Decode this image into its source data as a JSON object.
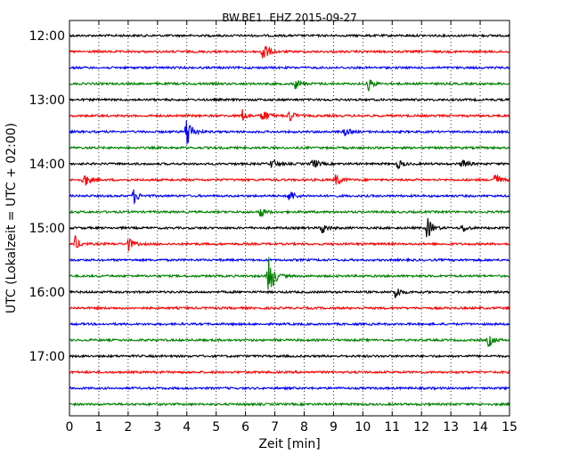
{
  "chart_data": {
    "type": "line",
    "title": "BW.BE1..EHZ 2015-09-27",
    "xlabel": "Zeit  [min]",
    "ylabel": "UTC (Lokalzeit = UTC + 02:00)",
    "xlim": [
      0,
      15
    ],
    "x_ticks": [
      "0",
      "1",
      "2",
      "3",
      "4",
      "5",
      "6",
      "7",
      "8",
      "9",
      "10",
      "11",
      "12",
      "13",
      "14",
      "15"
    ],
    "y_tick_labels": [
      "12:00",
      "13:00",
      "14:00",
      "15:00",
      "16:00",
      "17:00"
    ],
    "grid": true,
    "row_colors": [
      "#000000",
      "#ff0000",
      "#0000ff",
      "#008000"
    ],
    "series": [
      {
        "start": "12:00",
        "color": "#000000",
        "events": []
      },
      {
        "start": "12:15",
        "color": "#ff0000",
        "events": [
          {
            "t": 6.6,
            "amp": 14
          }
        ]
      },
      {
        "start": "12:30",
        "color": "#0000ff",
        "events": []
      },
      {
        "start": "12:45",
        "color": "#008000",
        "events": [
          {
            "t": 7.7,
            "amp": 6
          },
          {
            "t": 10.2,
            "amp": 7
          }
        ]
      },
      {
        "start": "13:00",
        "color": "#000000",
        "events": []
      },
      {
        "start": "13:15",
        "color": "#ff0000",
        "events": [
          {
            "t": 5.9,
            "amp": 7
          },
          {
            "t": 6.6,
            "amp": 9
          },
          {
            "t": 7.5,
            "amp": 7
          }
        ]
      },
      {
        "start": "13:30",
        "color": "#0000ff",
        "events": [
          {
            "t": 4.0,
            "amp": 22
          },
          {
            "t": 9.4,
            "amp": 5
          }
        ]
      },
      {
        "start": "13:45",
        "color": "#008000",
        "events": []
      },
      {
        "start": "14:00",
        "color": "#000000",
        "events": [
          {
            "t": 6.9,
            "amp": 6
          },
          {
            "t": 8.3,
            "amp": 7
          },
          {
            "t": 11.2,
            "amp": 5
          },
          {
            "t": 13.4,
            "amp": 6
          }
        ]
      },
      {
        "start": "14:15",
        "color": "#ff0000",
        "events": [
          {
            "t": 0.5,
            "amp": 9
          },
          {
            "t": 9.1,
            "amp": 8
          },
          {
            "t": 14.5,
            "amp": 10
          }
        ]
      },
      {
        "start": "14:30",
        "color": "#0000ff",
        "events": [
          {
            "t": 2.2,
            "amp": 8
          },
          {
            "t": 7.5,
            "amp": 8
          }
        ]
      },
      {
        "start": "14:45",
        "color": "#008000",
        "events": [
          {
            "t": 6.5,
            "amp": 6
          }
        ]
      },
      {
        "start": "15:00",
        "color": "#000000",
        "events": [
          {
            "t": 8.6,
            "amp": 7
          },
          {
            "t": 12.2,
            "amp": 13
          },
          {
            "t": 13.4,
            "amp": 5
          }
        ]
      },
      {
        "start": "15:15",
        "color": "#ff0000",
        "events": [
          {
            "t": 0.2,
            "amp": 8
          },
          {
            "t": 2.0,
            "amp": 8
          }
        ]
      },
      {
        "start": "15:30",
        "color": "#0000ff",
        "events": []
      },
      {
        "start": "15:45",
        "color": "#008000",
        "events": [
          {
            "t": 6.8,
            "amp": 30
          }
        ]
      },
      {
        "start": "16:00",
        "color": "#000000",
        "events": [
          {
            "t": 11.1,
            "amp": 9
          }
        ]
      },
      {
        "start": "16:15",
        "color": "#ff0000",
        "events": []
      },
      {
        "start": "16:30",
        "color": "#0000ff",
        "events": []
      },
      {
        "start": "16:45",
        "color": "#008000",
        "events": [
          {
            "t": 14.3,
            "amp": 8
          }
        ]
      },
      {
        "start": "17:00",
        "color": "#000000",
        "events": []
      },
      {
        "start": "17:15",
        "color": "#ff0000",
        "events": []
      },
      {
        "start": "17:30",
        "color": "#0000ff",
        "events": []
      },
      {
        "start": "17:45",
        "color": "#008000",
        "events": []
      }
    ]
  }
}
